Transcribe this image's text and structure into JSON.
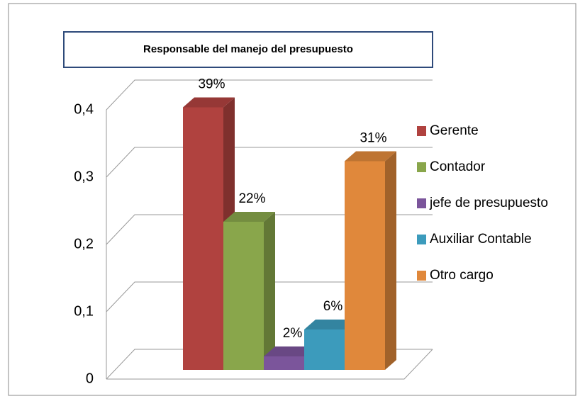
{
  "chart_data": {
    "type": "bar3d",
    "title": "Responsable del manejo del presupuesto",
    "categories": [
      "Gerente",
      "Contador",
      "jefe de presupuesto",
      "Auxiliar Contable",
      "Otro cargo"
    ],
    "values": [
      0.39,
      0.22,
      0.02,
      0.06,
      0.31
    ],
    "value_labels": [
      "39%",
      "22%",
      "2%",
      "6%",
      "31%"
    ],
    "colors": [
      "#b0423f",
      "#89a64b",
      "#7b559b",
      "#3c9bbc",
      "#e0883b"
    ],
    "ylim": [
      0,
      0.4
    ],
    "yticks": [
      0,
      {
        "value": 0.1,
        "label": "0,1"
      },
      {
        "value": 0.2,
        "label": "0,2"
      },
      {
        "value": 0.3,
        "label": "0,3"
      },
      {
        "value": 0.4,
        "label": "0,4"
      }
    ],
    "grid": true,
    "legend": "right"
  }
}
